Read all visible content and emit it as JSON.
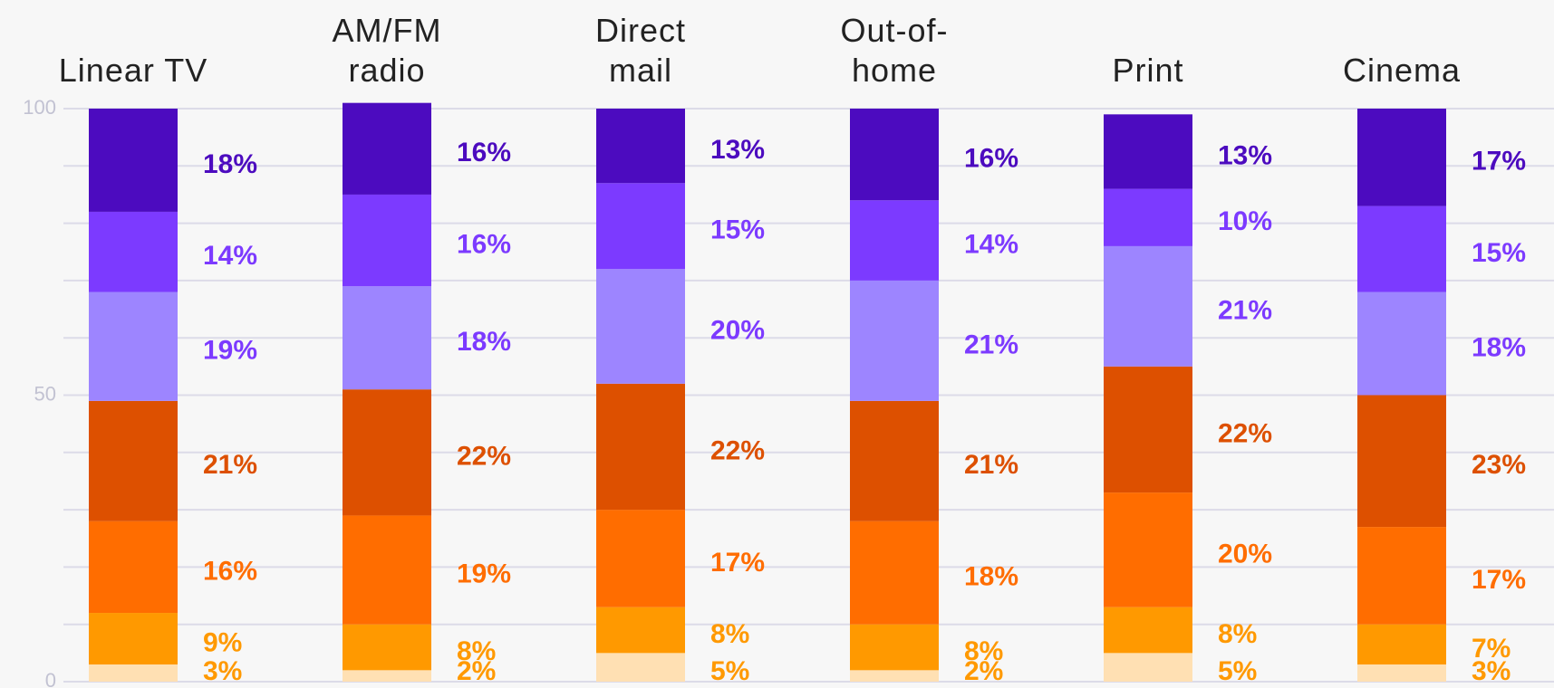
{
  "chart_data": {
    "type": "stacked_bar",
    "categories": [
      "Linear TV",
      "AM/FM radio",
      "Direct mail",
      "Out-of-home",
      "Print",
      "Cinema"
    ],
    "series": [
      {
        "color": "#ffe0b3",
        "label_color": "#ff9900",
        "values": [
          3,
          2,
          5,
          2,
          5,
          3
        ],
        "value_labels": [
          "3%",
          "2%",
          "5%",
          "2%",
          "5%",
          "3%"
        ]
      },
      {
        "color": "#ff9900",
        "label_color": "#ff9900",
        "values": [
          9,
          8,
          8,
          8,
          8,
          7
        ],
        "value_labels": [
          "9%",
          "8%",
          "8%",
          "8%",
          "8%",
          "7%"
        ]
      },
      {
        "color": "#ff6d00",
        "label_color": "#ff6d00",
        "values": [
          16,
          19,
          17,
          18,
          20,
          17
        ],
        "value_labels": [
          "16%",
          "19%",
          "17%",
          "18%",
          "20%",
          "17%"
        ]
      },
      {
        "color": "#dd5000",
        "label_color": "#dd5000",
        "values": [
          21,
          22,
          22,
          21,
          22,
          23
        ],
        "value_labels": [
          "21%",
          "22%",
          "22%",
          "21%",
          "22%",
          "23%"
        ]
      },
      {
        "color": "#9d85ff",
        "label_color": "#7c3aff",
        "values": [
          19,
          18,
          20,
          21,
          21,
          18
        ],
        "value_labels": [
          "19%",
          "18%",
          "20%",
          "21%",
          "21%",
          "18%"
        ]
      },
      {
        "color": "#7c3aff",
        "label_color": "#7c3aff",
        "values": [
          14,
          16,
          15,
          14,
          10,
          15
        ],
        "value_labels": [
          "14%",
          "16%",
          "15%",
          "14%",
          "10%",
          "15%"
        ]
      },
      {
        "color": "#4c0bbf",
        "label_color": "#4c0bbf",
        "values": [
          18,
          16,
          13,
          16,
          13,
          17
        ],
        "value_labels": [
          "18%",
          "16%",
          "13%",
          "16%",
          "13%",
          "17%"
        ]
      }
    ],
    "ylim": [
      0,
      100
    ],
    "yticks": [
      0,
      50,
      100
    ],
    "ygrid": [
      0,
      10,
      20,
      30,
      40,
      50,
      60,
      70,
      80,
      90,
      100
    ],
    "grid": true
  }
}
